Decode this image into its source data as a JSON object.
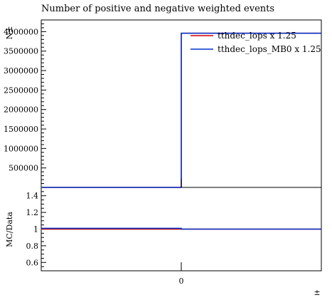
{
  "chart_data": [
    {
      "type": "line",
      "title": "Number of positive and negative weighted events",
      "ylabel": "N±",
      "xlabel": "±",
      "xlim": [
        -1.5,
        1.5
      ],
      "ylim": [
        0,
        4300000
      ],
      "x_ticks": [
        "0"
      ],
      "y_ticks": [
        "500000",
        "1000000",
        "1500000",
        "2000000",
        "2500000",
        "3000000",
        "3500000",
        "4000000"
      ],
      "legend_position": "top-right",
      "series": [
        {
          "name": "tthdec_lops x 1.25",
          "color": "#cc0000",
          "bins": [
            {
              "x_low": -1.5,
              "x_high": 0,
              "y": 0
            },
            {
              "x_low": 0,
              "x_high": 1.5,
              "y": 3960000
            }
          ]
        },
        {
          "name": "tthdec_lops_MB0 x 1.25",
          "color": "#0033cc",
          "bins": [
            {
              "x_low": -1.5,
              "x_high": 0,
              "y": 0
            },
            {
              "x_low": 0,
              "x_high": 1.5,
              "y": 3960000
            }
          ]
        }
      ]
    },
    {
      "type": "line",
      "ylabel": "MC/Data",
      "ylim": [
        0.5,
        1.5
      ],
      "y_ticks": [
        "0.6",
        "0.8",
        "1",
        "1.2",
        "1.4"
      ],
      "series": [
        {
          "name": "tthdec_lops x 1.25",
          "color": "#cc0000",
          "bins": [
            {
              "x_low": -1.5,
              "x_high": 0,
              "y": 1.0
            },
            {
              "x_low": 0,
              "x_high": 1.5,
              "y": 1.0
            }
          ]
        },
        {
          "name": "tthdec_lops_MB0 x 1.25",
          "color": "#0033cc",
          "bins": [
            {
              "x_low": -1.5,
              "x_high": 0,
              "y": 1.01
            },
            {
              "x_low": 0,
              "x_high": 1.5,
              "y": 1.0
            }
          ]
        }
      ]
    }
  ]
}
